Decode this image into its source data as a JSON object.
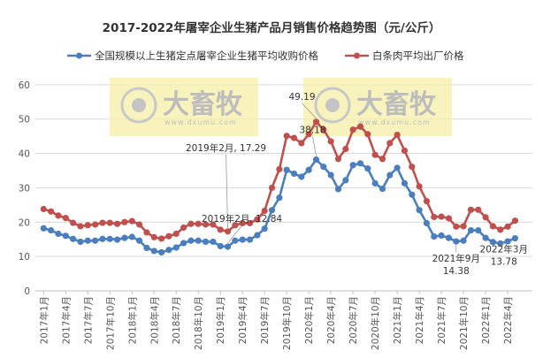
{
  "chart_data": {
    "type": "line",
    "title": "2017-2022年屠宰企业生猪产品月销售价格趋势图（元/公斤）",
    "xlabel": "",
    "ylabel": "",
    "ylim": [
      0,
      60
    ],
    "yticks": [
      0,
      10,
      20,
      30,
      40,
      50,
      60
    ],
    "grid": true,
    "legend_position": "top",
    "x_start": "2017年1月",
    "x_end": "2022年5月",
    "x_tick_labels": [
      "2017年1月",
      "2017年4月",
      "2017年7月",
      "2017年10月",
      "2018年1月",
      "2018年4月",
      "2018年7月",
      "2018年10月",
      "2019年1月",
      "2019年4月",
      "2019年7月",
      "2019年10月",
      "2020年1月",
      "2020年4月",
      "2020年7月",
      "2020年10月",
      "2021年1月",
      "2021年4月",
      "2021年7月",
      "2021年10月",
      "2022年1月",
      "2022年4月"
    ],
    "series": [
      {
        "name": "全国规模以上生猪定点屠宰企业生猪平均收购价格",
        "color": "#4a7ebf",
        "values": [
          18.2,
          17.6,
          16.6,
          16.0,
          15.1,
          14.3,
          14.6,
          14.6,
          15.1,
          15.1,
          14.9,
          15.4,
          15.7,
          14.6,
          12.5,
          11.6,
          11.2,
          11.9,
          12.6,
          13.9,
          14.6,
          14.6,
          14.3,
          14.3,
          13.0,
          12.84,
          14.6,
          14.9,
          14.9,
          16.2,
          18.1,
          23.5,
          27.1,
          35.2,
          34.1,
          33.2,
          35.2,
          38.18,
          36.1,
          33.7,
          29.6,
          32.2,
          36.6,
          37.1,
          35.6,
          31.3,
          29.7,
          33.7,
          35.8,
          31.3,
          28.0,
          23.5,
          19.7,
          15.8,
          16.1,
          15.4,
          14.38,
          14.6,
          17.6,
          17.6,
          15.4,
          14.2,
          13.78,
          14.4,
          15.3
        ]
      },
      {
        "name": "白条肉平均出厂价格",
        "color": "#c0504d",
        "values": [
          23.8,
          23.1,
          21.9,
          21.2,
          19.8,
          18.8,
          19.1,
          19.3,
          19.8,
          19.8,
          19.5,
          20.0,
          20.3,
          19.3,
          17.0,
          15.6,
          15.2,
          15.9,
          16.6,
          18.4,
          19.5,
          19.5,
          19.3,
          19.3,
          17.8,
          17.29,
          19.1,
          19.7,
          19.7,
          20.8,
          23.3,
          30.0,
          35.4,
          45.1,
          44.5,
          43.0,
          45.6,
          49.19,
          46.9,
          43.5,
          38.4,
          41.3,
          46.9,
          47.8,
          45.6,
          39.6,
          38.4,
          43.0,
          45.4,
          40.8,
          36.1,
          30.4,
          26.1,
          21.5,
          21.6,
          21.1,
          18.7,
          18.8,
          23.6,
          23.6,
          21.4,
          18.8,
          17.8,
          18.7,
          20.4
        ]
      }
    ],
    "annotations": [
      {
        "series": 1,
        "index": 25,
        "lines": [
          "2019年2月, 17.29"
        ]
      },
      {
        "series": 0,
        "index": 25,
        "lines": [
          "2019年2月, 12.84"
        ]
      },
      {
        "series": 1,
        "index": 37,
        "lines": [
          "49.19"
        ]
      },
      {
        "series": 0,
        "index": 37,
        "lines": [
          "38.18"
        ]
      },
      {
        "series": 0,
        "index": 56,
        "lines": [
          "2021年9月",
          "14.38"
        ]
      },
      {
        "series": 0,
        "index": 62,
        "lines": [
          "2022年3月",
          "13.78"
        ]
      }
    ]
  },
  "watermark": {
    "brand": "大畜牧",
    "url": "www.dxumu.com"
  }
}
